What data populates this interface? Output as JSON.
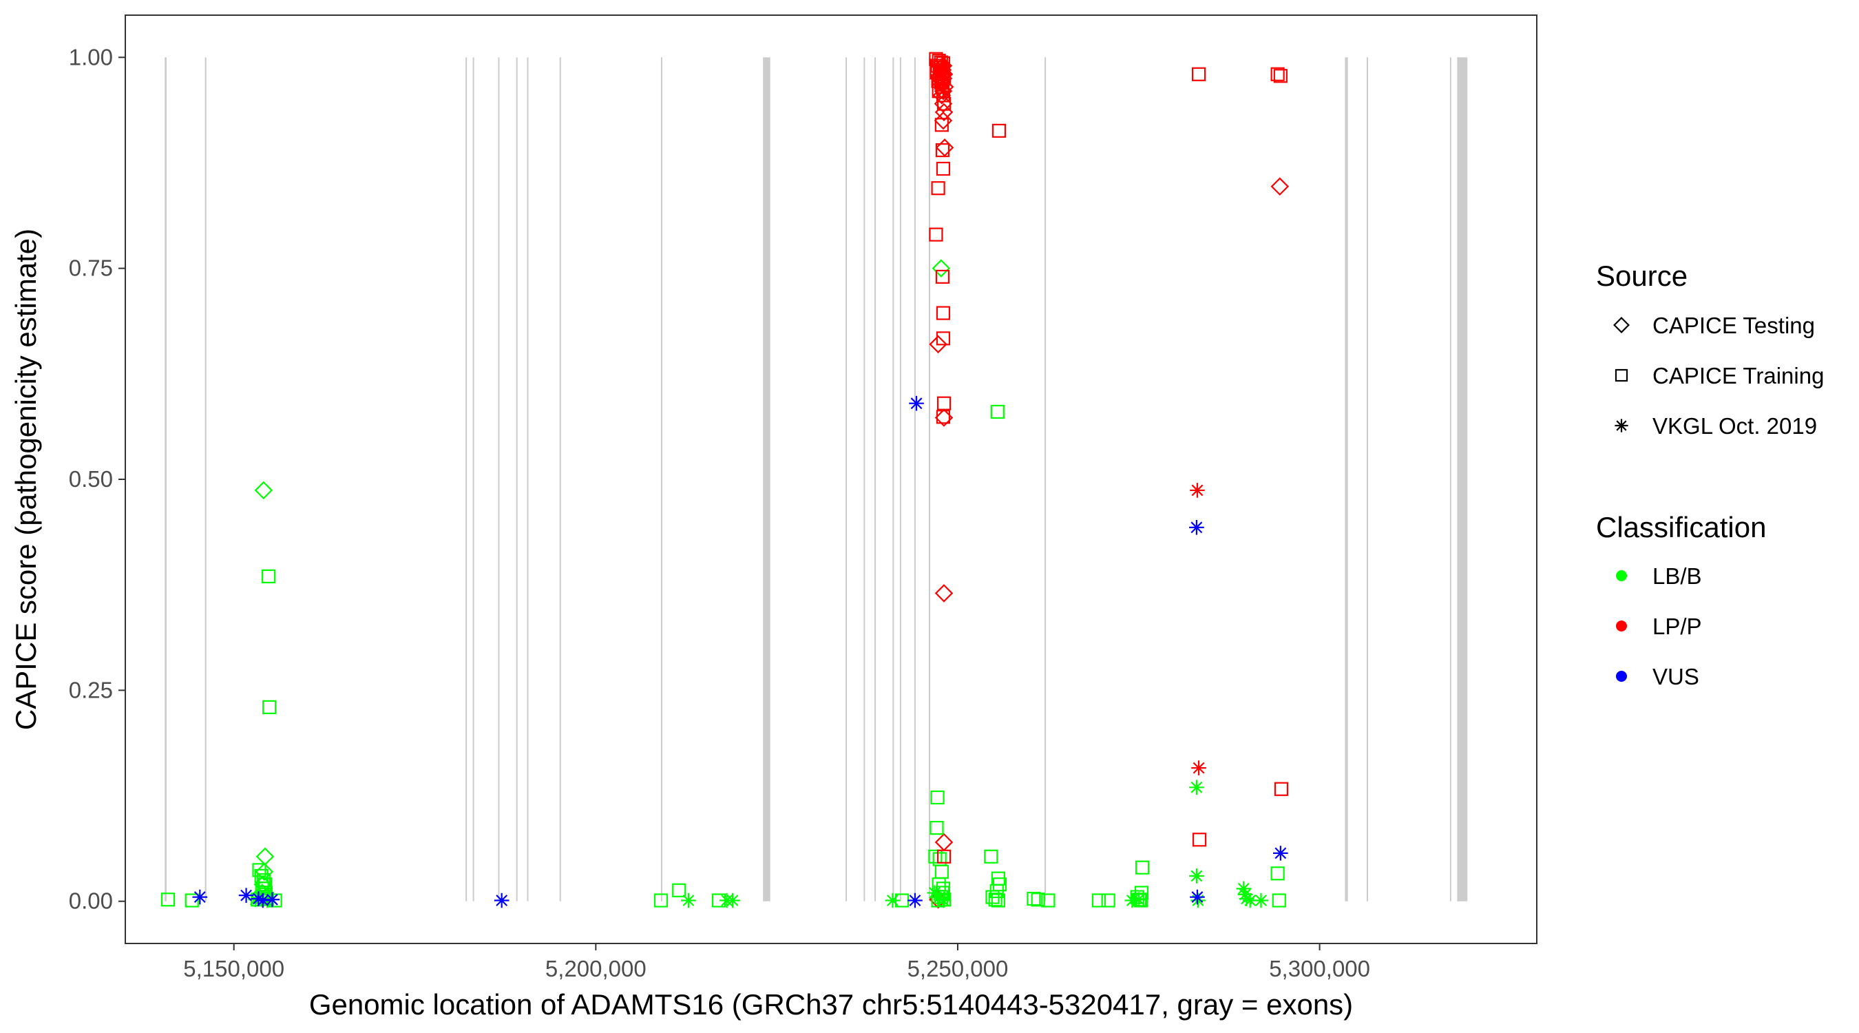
{
  "chart_data": {
    "type": "scatter",
    "xlabel": "Genomic location of ADAMTS16 (GRCh37 chr5:5140443-5320417, gray = exons)",
    "ylabel": "CAPICE score (pathogenicity estimate)",
    "xlim": [
      5135000,
      5330000
    ],
    "ylim": [
      -0.05,
      1.05
    ],
    "x_ticks": [
      5150000,
      5200000,
      5250000,
      5300000
    ],
    "x_tick_labels": [
      "5,150,000",
      "5,200,000",
      "5,250,000",
      "5,300,000"
    ],
    "y_ticks": [
      0,
      0.25,
      0.5,
      0.75,
      1.0
    ],
    "y_tick_labels": [
      "0.00",
      "0.25",
      "0.50",
      "0.75",
      "1.00"
    ],
    "grid": false,
    "exon_color": "#cccccc",
    "exons": [
      [
        5140443,
        5140700
      ],
      [
        5146000,
        5146200
      ],
      [
        5182000,
        5182200
      ],
      [
        5183000,
        5183150
      ],
      [
        5186500,
        5186650
      ],
      [
        5189000,
        5189150
      ],
      [
        5190500,
        5190650
      ],
      [
        5195000,
        5195150
      ],
      [
        5209000,
        5209150
      ],
      [
        5223100,
        5224100
      ],
      [
        5234500,
        5234650
      ],
      [
        5237000,
        5237150
      ],
      [
        5238500,
        5238650
      ],
      [
        5241000,
        5241150
      ],
      [
        5242000,
        5242150
      ],
      [
        5244000,
        5244150
      ],
      [
        5246000,
        5246200
      ],
      [
        5262000,
        5262150
      ],
      [
        5303500,
        5303900
      ],
      [
        5306500,
        5306700
      ],
      [
        5318000,
        5318150
      ],
      [
        5319000,
        5320417
      ]
    ],
    "legend": {
      "position": "right",
      "source_title": "Source",
      "source_items": [
        {
          "label": "CAPICE Testing",
          "shape": "diamond"
        },
        {
          "label": "CAPICE Training",
          "shape": "square"
        },
        {
          "label": "VKGL Oct. 2019",
          "shape": "asterisk"
        }
      ],
      "class_title": "Classification",
      "class_items": [
        {
          "label": "LB/B",
          "color": "#00ff00"
        },
        {
          "label": "LP/P",
          "color": "#ff0000"
        },
        {
          "label": "VUS",
          "color": "#0000ff"
        }
      ]
    },
    "series": [
      {
        "source": "CAPICE Testing",
        "classification": "LB/B",
        "points": [
          [
            5154100,
            0.487
          ],
          [
            5154300,
            0.053
          ],
          [
            5154200,
            0.035
          ],
          [
            5154000,
            0.02
          ],
          [
            5153900,
            0.01
          ],
          [
            5154400,
            0.005
          ],
          [
            5247700,
            0.75
          ]
        ]
      },
      {
        "source": "CAPICE Testing",
        "classification": "LP/P",
        "points": [
          [
            5248000,
            0.99
          ],
          [
            5247900,
            0.985
          ],
          [
            5248100,
            0.98
          ],
          [
            5248000,
            0.975
          ],
          [
            5247600,
            0.97
          ],
          [
            5248200,
            0.965
          ],
          [
            5248000,
            0.96
          ],
          [
            5247800,
            0.955
          ],
          [
            5248000,
            0.945
          ],
          [
            5248100,
            0.935
          ],
          [
            5248000,
            0.925
          ],
          [
            5248200,
            0.893
          ],
          [
            5247300,
            0.66
          ],
          [
            5248100,
            0.573
          ],
          [
            5248100,
            0.365
          ],
          [
            5248100,
            0.07
          ],
          [
            5247300,
            0.002
          ],
          [
            5294500,
            0.847
          ]
        ]
      },
      {
        "source": "CAPICE Training",
        "classification": "LB/B",
        "points": [
          [
            5140900,
            0.002
          ],
          [
            5144200,
            0.001
          ],
          [
            5154800,
            0.385
          ],
          [
            5154900,
            0.23
          ],
          [
            5153500,
            0.037
          ],
          [
            5153800,
            0.03
          ],
          [
            5154100,
            0.025
          ],
          [
            5154300,
            0.02
          ],
          [
            5153900,
            0.015
          ],
          [
            5154400,
            0.01
          ],
          [
            5154200,
            0.008
          ],
          [
            5154000,
            0.005
          ],
          [
            5154600,
            0.003
          ],
          [
            5155700,
            0.001
          ],
          [
            5153300,
            0.002
          ],
          [
            5209000,
            0.001
          ],
          [
            5211500,
            0.013
          ],
          [
            5217000,
            0.001
          ],
          [
            5242300,
            0.001
          ],
          [
            5247200,
            0.123
          ],
          [
            5247100,
            0.087
          ],
          [
            5246900,
            0.053
          ],
          [
            5247500,
            0.05
          ],
          [
            5247800,
            0.035
          ],
          [
            5247400,
            0.02
          ],
          [
            5248000,
            0.015
          ],
          [
            5247900,
            0.01
          ],
          [
            5247700,
            0.005
          ],
          [
            5248100,
            0.002
          ],
          [
            5247300,
            0.001
          ],
          [
            5255500,
            0.58
          ],
          [
            5254600,
            0.053
          ],
          [
            5255600,
            0.027
          ],
          [
            5255800,
            0.02
          ],
          [
            5255400,
            0.012
          ],
          [
            5254800,
            0.005
          ],
          [
            5255200,
            0.002
          ],
          [
            5255600,
            0.001
          ],
          [
            5260500,
            0.003
          ],
          [
            5261100,
            0.002
          ],
          [
            5262500,
            0.001
          ],
          [
            5269500,
            0.001
          ],
          [
            5270800,
            0.001
          ],
          [
            5275500,
            0.04
          ],
          [
            5275400,
            0.01
          ],
          [
            5274800,
            0.005
          ],
          [
            5275100,
            0.002
          ],
          [
            5275300,
            0.001
          ],
          [
            5294200,
            0.033
          ],
          [
            5294400,
            0.001
          ]
        ]
      },
      {
        "source": "CAPICE Training",
        "classification": "LP/P",
        "points": [
          [
            5247000,
            0.998
          ],
          [
            5247400,
            0.996
          ],
          [
            5247700,
            0.994
          ],
          [
            5248000,
            0.993
          ],
          [
            5247200,
            0.99
          ],
          [
            5247600,
            0.988
          ],
          [
            5247900,
            0.985
          ],
          [
            5247100,
            0.982
          ],
          [
            5247500,
            0.98
          ],
          [
            5247800,
            0.977
          ],
          [
            5248100,
            0.975
          ],
          [
            5247300,
            0.972
          ],
          [
            5247700,
            0.97
          ],
          [
            5247900,
            0.965
          ],
          [
            5247400,
            0.96
          ],
          [
            5248000,
            0.955
          ],
          [
            5248100,
            0.945
          ],
          [
            5247800,
            0.92
          ],
          [
            5247900,
            0.89
          ],
          [
            5248000,
            0.868
          ],
          [
            5247300,
            0.845
          ],
          [
            5247000,
            0.79
          ],
          [
            5247900,
            0.74
          ],
          [
            5248000,
            0.697
          ],
          [
            5248000,
            0.667
          ],
          [
            5248100,
            0.59
          ],
          [
            5248000,
            0.574
          ],
          [
            5248100,
            0.053
          ],
          [
            5255700,
            0.913
          ],
          [
            5283300,
            0.98
          ],
          [
            5283400,
            0.073
          ],
          [
            5294200,
            0.98
          ],
          [
            5294600,
            0.978
          ],
          [
            5294700,
            0.133
          ]
        ]
      },
      {
        "source": "VKGL Oct. 2019",
        "classification": "LB/B",
        "points": [
          [
            5153000,
            0.002
          ],
          [
            5153700,
            0.004
          ],
          [
            5154600,
            0.001
          ],
          [
            5212800,
            0.001
          ],
          [
            5218100,
            0.001
          ],
          [
            5218900,
            0.001
          ],
          [
            5241000,
            0.001
          ],
          [
            5246800,
            0.01
          ],
          [
            5247500,
            0.005
          ],
          [
            5248000,
            0.001
          ],
          [
            5274100,
            0.001
          ],
          [
            5275000,
            0.002
          ],
          [
            5283000,
            0.135
          ],
          [
            5283000,
            0.03
          ],
          [
            5283200,
            0.001
          ],
          [
            5289500,
            0.015
          ],
          [
            5289700,
            0.008
          ],
          [
            5289900,
            0.003
          ],
          [
            5290400,
            0.001
          ],
          [
            5291900,
            0.001
          ]
        ]
      },
      {
        "source": "VKGL Oct. 2019",
        "classification": "LP/P",
        "points": [
          [
            5247700,
            0.99
          ],
          [
            5248100,
            0.98
          ],
          [
            5247900,
            0.97
          ],
          [
            5248000,
            0.96
          ],
          [
            5283100,
            0.487
          ],
          [
            5283300,
            0.158
          ]
        ]
      },
      {
        "source": "VKGL Oct. 2019",
        "classification": "VUS",
        "points": [
          [
            5145300,
            0.005
          ],
          [
            5151700,
            0.007
          ],
          [
            5153400,
            0.003
          ],
          [
            5154000,
            0.001
          ],
          [
            5155300,
            0.002
          ],
          [
            5187000,
            0.001
          ],
          [
            5244300,
            0.59
          ],
          [
            5244100,
            0.001
          ],
          [
            5283000,
            0.443
          ],
          [
            5283100,
            0.005
          ],
          [
            5294600,
            0.057
          ]
        ]
      }
    ]
  }
}
